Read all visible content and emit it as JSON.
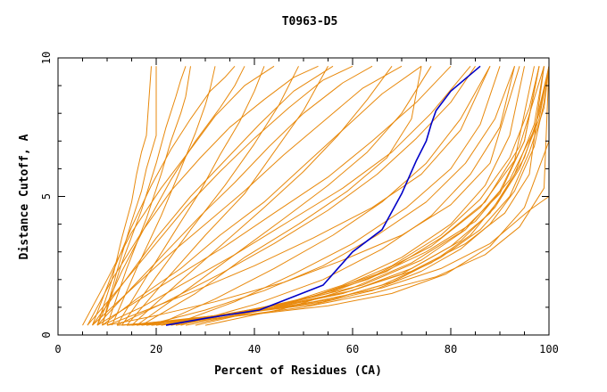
{
  "chart_data": {
    "type": "line",
    "title": "T0963-D5",
    "xlabel": "Percent of Residues (CA)",
    "ylabel": "Distance Cutoff, A",
    "xlim": [
      0,
      100
    ],
    "ylim": [
      0,
      10
    ],
    "x_ticks": [
      0,
      20,
      40,
      60,
      80,
      100
    ],
    "y_ticks": [
      0,
      5,
      10
    ],
    "grid": false,
    "legend": "none",
    "colors": {
      "models": "#e8890c",
      "highlight": "#0000c8"
    },
    "series": [
      {
        "x": [
          22,
          30,
          41,
          54,
          60,
          66,
          70,
          73,
          75,
          76,
          77,
          80,
          86
        ],
        "y": [
          0.35,
          0.6,
          0.9,
          1.8,
          3.0,
          3.8,
          5.1,
          6.3,
          7.0,
          7.6,
          8.1,
          8.8,
          9.7
        ]
      },
      {
        "x": [
          13,
          25,
          38,
          52,
          64,
          74,
          82,
          88,
          93,
          97,
          99,
          100
        ],
        "y": [
          0.35,
          0.55,
          0.8,
          1.1,
          1.6,
          2.3,
          3.1,
          4.0,
          5.2,
          6.8,
          8.4,
          9.7
        ]
      },
      {
        "x": [
          15,
          28,
          42,
          56,
          68,
          78,
          86,
          92,
          96,
          99,
          100
        ],
        "y": [
          0.35,
          0.6,
          0.9,
          1.3,
          1.9,
          2.8,
          3.8,
          5.0,
          6.6,
          8.2,
          9.7
        ]
      },
      {
        "x": [
          14,
          27,
          40,
          54,
          66,
          76,
          84,
          90,
          95,
          98,
          100
        ],
        "y": [
          0.35,
          0.6,
          0.85,
          1.2,
          1.8,
          2.6,
          3.6,
          4.9,
          6.4,
          8.0,
          9.7
        ]
      },
      {
        "x": [
          16,
          30,
          44,
          58,
          70,
          80,
          88,
          93,
          97,
          99
        ],
        "y": [
          0.35,
          0.65,
          1.0,
          1.5,
          2.2,
          3.2,
          4.4,
          5.8,
          7.6,
          9.7
        ]
      },
      {
        "x": [
          17,
          32,
          46,
          60,
          72,
          82,
          89,
          94,
          98,
          100
        ],
        "y": [
          0.35,
          0.7,
          1.1,
          1.6,
          2.4,
          3.4,
          4.6,
          6.0,
          7.8,
          9.7
        ]
      },
      {
        "x": [
          18,
          34,
          48,
          62,
          74,
          83,
          90,
          95,
          98
        ],
        "y": [
          0.35,
          0.75,
          1.2,
          1.8,
          2.7,
          3.8,
          5.2,
          7.0,
          9.7
        ]
      },
      {
        "x": [
          20,
          36,
          50,
          63,
          75,
          85,
          92,
          97,
          100
        ],
        "y": [
          0.35,
          0.8,
          1.3,
          2.0,
          3.0,
          4.1,
          5.6,
          7.4,
          9.7
        ]
      },
      {
        "x": [
          21,
          38,
          52,
          65,
          76,
          86,
          93,
          97
        ],
        "y": [
          0.35,
          0.85,
          1.4,
          2.2,
          3.2,
          4.6,
          6.3,
          9.7
        ]
      },
      {
        "x": [
          23,
          40,
          55,
          67,
          78,
          87,
          94,
          99
        ],
        "y": [
          0.35,
          0.9,
          1.5,
          2.3,
          3.5,
          4.8,
          6.8,
          9.7
        ]
      },
      {
        "x": [
          14,
          26,
          40,
          55,
          68,
          79,
          88,
          95,
          100
        ],
        "y": [
          0.35,
          0.5,
          0.75,
          1.05,
          1.5,
          2.2,
          3.2,
          4.6,
          7.0
        ]
      },
      {
        "x": [
          19,
          35,
          50,
          64,
          77,
          87,
          94,
          99,
          100
        ],
        "y": [
          0.35,
          0.65,
          1.0,
          1.5,
          2.1,
          2.9,
          3.9,
          5.3,
          9.7
        ]
      },
      {
        "x": [
          24,
          42,
          58,
          72,
          83,
          91,
          96,
          99
        ],
        "y": [
          0.35,
          0.9,
          1.5,
          2.3,
          3.3,
          4.4,
          5.8,
          9.7
        ]
      },
      {
        "x": [
          12,
          24,
          38,
          52,
          66,
          78,
          88,
          96,
          100
        ],
        "y": [
          0.35,
          0.5,
          0.8,
          1.2,
          1.7,
          2.4,
          3.3,
          4.5,
          5.0
        ]
      },
      {
        "x": [
          10,
          20,
          32,
          46,
          58,
          70,
          80,
          88,
          94
        ],
        "y": [
          0.35,
          0.7,
          1.2,
          1.9,
          2.7,
          3.6,
          4.7,
          6.2,
          9.7
        ]
      },
      {
        "x": [
          10,
          18,
          28,
          40,
          52,
          64,
          74,
          82,
          88
        ],
        "y": [
          0.35,
          0.9,
          1.6,
          2.5,
          3.5,
          4.6,
          5.8,
          7.4,
          9.7
        ]
      },
      {
        "x": [
          9,
          17,
          26,
          36,
          47,
          58,
          68,
          76,
          84
        ],
        "y": [
          0.35,
          1.0,
          1.9,
          2.9,
          4.1,
          5.3,
          6.6,
          8.0,
          9.7
        ]
      },
      {
        "x": [
          8,
          15,
          24,
          34,
          44,
          55,
          64,
          73,
          80
        ],
        "y": [
          0.35,
          1.1,
          2.1,
          3.2,
          4.4,
          5.7,
          7.0,
          8.4,
          9.7
        ]
      },
      {
        "x": [
          9,
          16,
          25,
          33,
          42,
          50,
          58,
          66,
          74
        ],
        "y": [
          0.35,
          1.3,
          2.4,
          3.6,
          4.8,
          6.1,
          7.4,
          8.7,
          9.7
        ]
      },
      {
        "x": [
          7,
          14,
          22,
          30,
          38,
          46,
          54,
          62,
          70
        ],
        "y": [
          0.35,
          1.5,
          2.8,
          4.0,
          5.2,
          6.5,
          7.7,
          8.9,
          9.7
        ]
      },
      {
        "x": [
          8,
          15,
          22,
          29,
          36,
          43,
          50,
          58,
          64
        ],
        "y": [
          0.35,
          1.7,
          3.0,
          4.3,
          5.5,
          6.8,
          8.0,
          9.1,
          9.7
        ]
      },
      {
        "x": [
          6,
          12,
          19,
          26,
          33,
          40,
          47,
          54,
          60
        ],
        "y": [
          0.35,
          1.6,
          3.1,
          4.6,
          5.9,
          7.1,
          8.2,
          9.2,
          9.7
        ]
      },
      {
        "x": [
          7,
          13,
          20,
          27,
          34,
          41,
          48,
          56
        ],
        "y": [
          0.35,
          1.8,
          3.5,
          5.0,
          6.3,
          7.6,
          8.8,
          9.7
        ]
      },
      {
        "x": [
          6,
          11,
          17,
          23,
          29,
          35,
          42,
          48,
          53
        ],
        "y": [
          0.35,
          2.0,
          3.7,
          5.2,
          6.4,
          7.5,
          8.5,
          9.3,
          9.7
        ]
      },
      {
        "x": [
          5,
          10,
          15,
          21,
          27,
          32,
          38,
          44
        ],
        "y": [
          0.35,
          2.0,
          3.7,
          5.3,
          6.7,
          7.9,
          9.0,
          9.7
        ]
      },
      {
        "x": [
          8,
          13,
          18,
          23,
          28,
          33,
          36,
          38
        ],
        "y": [
          0.35,
          2.3,
          4.0,
          5.6,
          7.0,
          8.2,
          9.0,
          9.7
        ]
      },
      {
        "x": [
          7,
          11,
          15,
          19,
          23,
          27,
          31,
          34,
          36
        ],
        "y": [
          0.35,
          2.2,
          3.9,
          5.4,
          6.7,
          7.8,
          8.8,
          9.3,
          9.7
        ]
      },
      {
        "x": [
          9,
          12,
          15,
          17,
          18,
          20,
          20,
          20
        ],
        "y": [
          0.35,
          2.3,
          4.1,
          5.2,
          6.0,
          7.2,
          8.2,
          9.7
        ]
      },
      {
        "x": [
          8,
          11,
          13,
          15,
          16,
          17,
          18,
          19
        ],
        "y": [
          0.35,
          2.0,
          3.5,
          4.8,
          5.8,
          6.6,
          7.2,
          9.7
        ]
      },
      {
        "x": [
          10,
          14,
          18,
          21,
          23,
          25,
          26,
          27
        ],
        "y": [
          0.35,
          2.4,
          4.2,
          5.8,
          7.0,
          8.0,
          8.6,
          9.7
        ]
      },
      {
        "x": [
          9,
          13,
          17,
          20,
          22,
          24,
          25,
          26
        ],
        "y": [
          0.35,
          2.6,
          4.5,
          6.2,
          7.5,
          8.6,
          9.2,
          9.7
        ]
      },
      {
        "x": [
          11,
          16,
          21,
          25,
          28,
          30,
          31,
          32
        ],
        "y": [
          0.35,
          2.4,
          4.3,
          6.0,
          7.3,
          8.3,
          8.9,
          9.7
        ]
      },
      {
        "x": [
          12,
          18,
          24,
          29,
          33,
          37,
          40,
          42
        ],
        "y": [
          0.35,
          2.1,
          3.8,
          5.2,
          6.5,
          7.7,
          8.8,
          9.7
        ]
      },
      {
        "x": [
          13,
          20,
          27,
          34,
          40,
          45,
          49
        ],
        "y": [
          0.35,
          2.1,
          3.8,
          5.4,
          6.9,
          8.3,
          9.7
        ]
      },
      {
        "x": [
          14,
          22,
          30,
          38,
          44,
          50,
          55
        ],
        "y": [
          0.35,
          2.0,
          3.6,
          5.1,
          6.6,
          8.1,
          9.7
        ]
      },
      {
        "x": [
          15,
          24,
          33,
          42,
          50,
          57,
          63,
          68
        ],
        "y": [
          0.35,
          1.8,
          3.2,
          4.6,
          5.9,
          7.2,
          8.5,
          9.7
        ]
      },
      {
        "x": [
          16,
          26,
          36,
          46,
          55,
          63,
          70,
          76
        ],
        "y": [
          0.35,
          1.6,
          2.9,
          4.2,
          5.4,
          6.6,
          8.0,
          9.7
        ]
      },
      {
        "x": [
          17,
          28,
          38,
          49,
          59,
          67,
          72,
          74
        ],
        "y": [
          0.35,
          1.5,
          2.8,
          4.0,
          5.2,
          6.4,
          7.8,
          9.7
        ]
      },
      {
        "x": [
          20,
          32,
          44,
          56,
          66,
          75,
          82,
          88
        ],
        "y": [
          0.35,
          1.3,
          2.4,
          3.6,
          4.8,
          6.2,
          7.8,
          9.7
        ]
      },
      {
        "x": [
          23,
          36,
          48,
          60,
          71,
          80,
          86,
          90
        ],
        "y": [
          0.35,
          1.2,
          2.2,
          3.3,
          4.6,
          6.0,
          7.6,
          9.7
        ]
      },
      {
        "x": [
          25,
          40,
          54,
          66,
          76,
          84,
          90,
          93
        ],
        "y": [
          0.35,
          1.1,
          2.0,
          3.1,
          4.3,
          5.8,
          7.5,
          9.7
        ]
      },
      {
        "x": [
          28,
          44,
          58,
          70,
          80,
          87,
          92,
          95
        ],
        "y": [
          0.35,
          1.0,
          1.8,
          2.8,
          4.0,
          5.4,
          7.2,
          9.7
        ]
      },
      {
        "x": [
          30,
          46,
          60,
          72,
          82,
          90,
          95,
          98
        ],
        "y": [
          0.35,
          0.95,
          1.7,
          2.6,
          3.7,
          5.1,
          7.0,
          9.7
        ]
      },
      {
        "x": [
          26,
          42,
          56,
          68,
          78,
          86,
          92,
          96,
          98
        ],
        "y": [
          0.35,
          0.9,
          1.6,
          2.5,
          3.6,
          4.9,
          6.4,
          8.2,
          9.7
        ]
      },
      {
        "x": [
          18,
          30,
          42,
          54,
          65,
          75,
          83,
          89,
          93
        ],
        "y": [
          0.35,
          0.9,
          1.6,
          2.5,
          3.6,
          4.8,
          6.2,
          7.8,
          9.7
        ]
      },
      {
        "x": [
          12,
          22,
          33,
          44,
          55,
          65,
          73,
          80,
          85
        ],
        "y": [
          0.35,
          1.2,
          2.2,
          3.3,
          4.5,
          5.8,
          7.1,
          8.4,
          9.7
        ]
      }
    ]
  }
}
